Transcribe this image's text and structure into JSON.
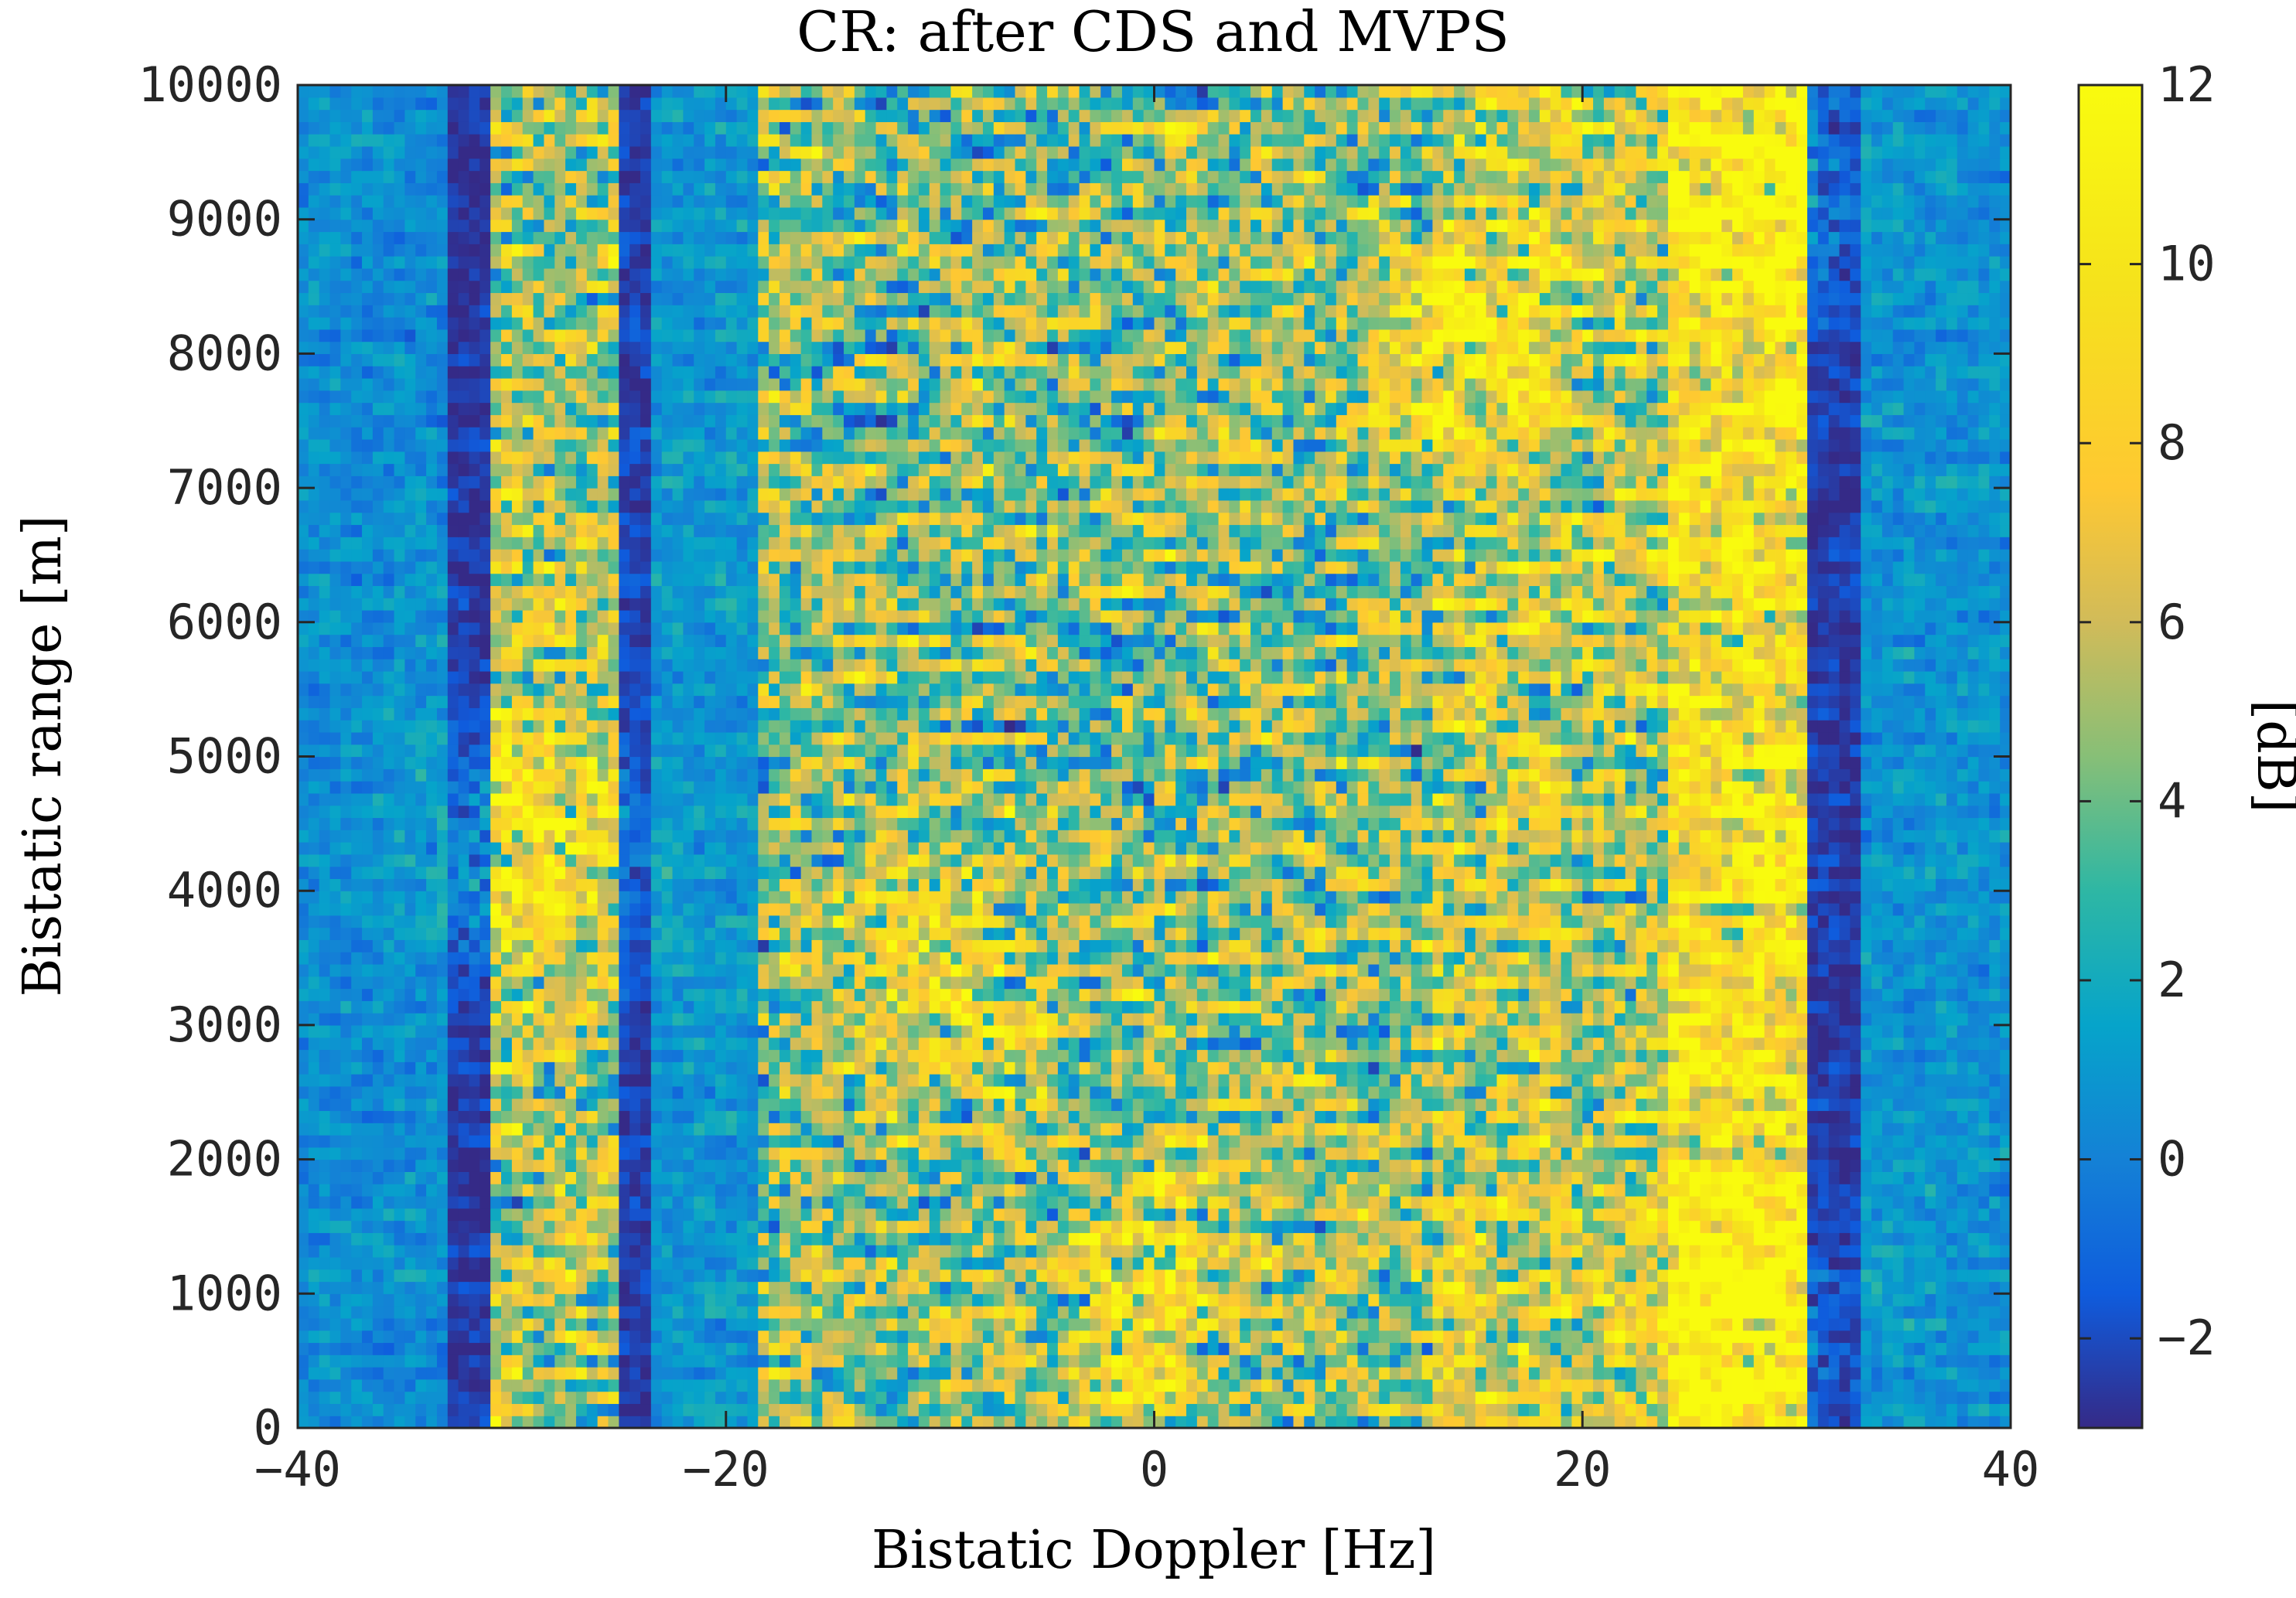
{
  "chart_data": {
    "type": "heatmap",
    "title": "CR: after CDS and MVPS",
    "xlabel": "Bistatic Doppler [Hz]",
    "ylabel": "Bistatic range [m]",
    "colorbar_label": "[dB]",
    "xlim": [
      -40,
      40
    ],
    "ylim": [
      0,
      10000
    ],
    "clim": [
      -3,
      12
    ],
    "colormap": "parula",
    "x_ticks": [
      -40,
      -20,
      0,
      20,
      40
    ],
    "x_tick_labels": [
      "−40",
      "−20",
      "0",
      "20",
      "40"
    ],
    "y_ticks": [
      0,
      1000,
      2000,
      3000,
      4000,
      5000,
      6000,
      7000,
      8000,
      9000,
      10000
    ],
    "y_tick_labels": [
      "0",
      "1000",
      "2000",
      "3000",
      "4000",
      "5000",
      "6000",
      "7000",
      "8000",
      "9000",
      "10000"
    ],
    "colorbar_ticks": [
      -2,
      0,
      2,
      4,
      6,
      8,
      10,
      12
    ],
    "colorbar_tick_labels": [
      "−2",
      "0",
      "2",
      "4",
      "6",
      "8",
      "10",
      "12"
    ],
    "doppler_bands": [
      {
        "x": [
          -40,
          -33
        ],
        "level_db": 0.5
      },
      {
        "x": [
          -33,
          -31
        ],
        "level_db": -2.5
      },
      {
        "x": [
          -31,
          -25
        ],
        "level_db": 5.5
      },
      {
        "x": [
          -25,
          -23.5
        ],
        "level_db": -2.2
      },
      {
        "x": [
          -23.5,
          -18.5
        ],
        "level_db": 1.0
      },
      {
        "x": [
          -18.5,
          13
        ],
        "level_db": 4.5
      },
      {
        "x": [
          13,
          19
        ],
        "level_db": 6.5
      },
      {
        "x": [
          19,
          24
        ],
        "level_db": 5.5
      },
      {
        "x": [
          24,
          30.5
        ],
        "level_db": 9.0
      },
      {
        "x": [
          30.5,
          33
        ],
        "level_db": -2.5
      },
      {
        "x": [
          33,
          40
        ],
        "level_db": 0.8
      }
    ],
    "hot_spots": [
      {
        "x": 0,
        "y": 1000,
        "level_db": 12
      },
      {
        "x": 27,
        "y": 600,
        "level_db": 12
      },
      {
        "x": 28,
        "y": 9200,
        "level_db": 12
      },
      {
        "x": -29,
        "y": 4300,
        "level_db": 12
      },
      {
        "x": -10,
        "y": 3200,
        "level_db": 11
      },
      {
        "x": 15,
        "y": 8200,
        "level_db": 11
      }
    ],
    "grid": false
  }
}
